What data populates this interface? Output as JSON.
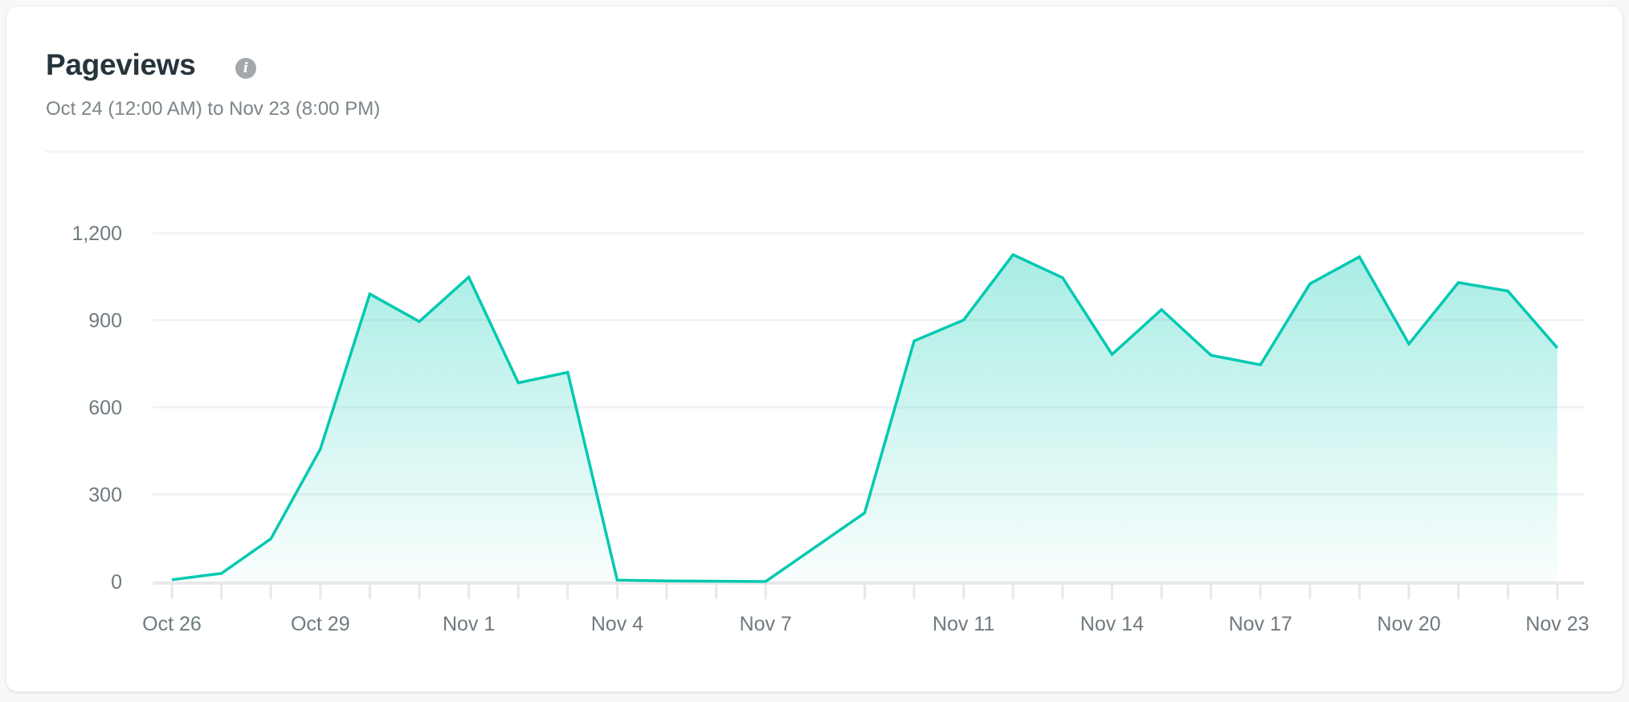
{
  "header": {
    "title": "Pageviews",
    "info_icon": "info-icon",
    "subtitle": "Oct 24 (12:00 AM) to Nov 23 (8:00 PM)"
  },
  "chart_data": {
    "type": "area",
    "title": "Pageviews",
    "xlabel": "",
    "ylabel": "",
    "ylim": [
      0,
      1200
    ],
    "y_ticks": [
      "0",
      "300",
      "600",
      "900",
      "1,200"
    ],
    "y_tick_values": [
      0,
      300,
      600,
      900,
      1200
    ],
    "x_tick_labels": [
      "Oct 26",
      "Oct 29",
      "Nov 1",
      "Nov 4",
      "Nov 7",
      "Nov 11",
      "Nov 14",
      "Nov 17",
      "Nov 20",
      "Nov 23"
    ],
    "grid": true,
    "color": "#00c9b1",
    "x": [
      "Oct 26",
      "Oct 27",
      "Oct 28",
      "Oct 29",
      "Oct 30",
      "Oct 31",
      "Nov 1",
      "Nov 2",
      "Nov 3",
      "Nov 4",
      "Nov 5",
      "Nov 6",
      "Nov 7",
      "Nov 9",
      "Nov 10",
      "Nov 11",
      "Nov 12",
      "Nov 13",
      "Nov 14",
      "Nov 15",
      "Nov 16",
      "Nov 17",
      "Nov 18",
      "Nov 19",
      "Nov 20",
      "Nov 21",
      "Nov 22",
      "Nov 23"
    ],
    "day_index": [
      0,
      1,
      2,
      3,
      4,
      5,
      6,
      7,
      8,
      9,
      10,
      11,
      12,
      14,
      15,
      16,
      17,
      18,
      19,
      20,
      21,
      22,
      23,
      24,
      25,
      26,
      27,
      28
    ],
    "values": [
      6,
      28,
      147,
      456,
      990,
      895,
      1048,
      684,
      720,
      5,
      2,
      1,
      0,
      236,
      828,
      900,
      1125,
      1046,
      782,
      936,
      779,
      746,
      1025,
      1118,
      818,
      1029,
      1000,
      804
    ]
  }
}
